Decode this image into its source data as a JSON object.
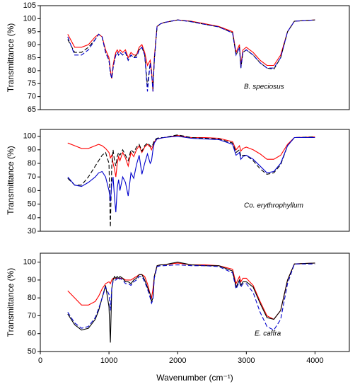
{
  "chart_data": [
    {
      "type": "line",
      "ylabel": "Transmittance (%)",
      "annotation": "B. speciosus",
      "x": [
        400,
        500,
        600,
        700,
        800,
        850,
        900,
        950,
        1000,
        1020,
        1040,
        1060,
        1080,
        1100,
        1120,
        1140,
        1160,
        1200,
        1240,
        1280,
        1320,
        1360,
        1400,
        1440,
        1480,
        1520,
        1560,
        1600,
        1620,
        1640,
        1660,
        1700,
        1750,
        1800,
        2000,
        2200,
        2400,
        2600,
        2800,
        2850,
        2900,
        2920,
        2950,
        3000,
        3100,
        3200,
        3300,
        3400,
        3500,
        3600,
        3700,
        4000
      ],
      "xlim": [
        0,
        4500
      ],
      "ylim": [
        65,
        105
      ],
      "yticks": [
        65,
        70,
        75,
        80,
        85,
        90,
        95,
        100,
        105
      ],
      "series": [
        {
          "color": "#ff0000",
          "style": "solid",
          "values": [
            94,
            89,
            89,
            90,
            93,
            94,
            93,
            88,
            85,
            80,
            77,
            82,
            85,
            87,
            88,
            87,
            88,
            87,
            88,
            85,
            87,
            86,
            86,
            89,
            90,
            87,
            82,
            84,
            80,
            72,
            85,
            97,
            98,
            98.5,
            99.5,
            99,
            98,
            97,
            95,
            87,
            90,
            82,
            88,
            89,
            87,
            84,
            82,
            82,
            86,
            95,
            99,
            99.5
          ]
        },
        {
          "color": "#000000",
          "style": "dashed",
          "values": [
            92,
            87,
            87,
            89,
            92,
            94,
            93,
            87,
            84,
            79,
            77,
            81,
            84,
            86,
            87,
            86,
            87,
            86,
            87,
            84,
            86,
            85,
            86,
            88,
            89,
            86,
            74,
            83,
            79,
            73,
            84,
            97,
            98,
            98.5,
            99.5,
            98.9,
            97.8,
            96.8,
            94.6,
            86,
            89,
            81,
            87,
            88,
            86,
            83,
            81,
            80.5,
            85,
            95,
            99,
            99.5
          ]
        },
        {
          "color": "#0000cc",
          "style": "dashed",
          "values": [
            93,
            86,
            86,
            88,
            92,
            94,
            93,
            87,
            84,
            79,
            77,
            81,
            84,
            86,
            87,
            86,
            87,
            86,
            87,
            84,
            86,
            85,
            85,
            88,
            89,
            86,
            72,
            83,
            79,
            72,
            84,
            97,
            98,
            98.5,
            99.5,
            98.8,
            97.8,
            96.8,
            94.5,
            86,
            89,
            81,
            87,
            88,
            86,
            83,
            81,
            81,
            85,
            95,
            99,
            99.5
          ]
        }
      ]
    },
    {
      "type": "line",
      "ylabel": "Transmittance (%)",
      "annotation": "Co. erythrophyllum",
      "x": [
        400,
        500,
        600,
        700,
        800,
        850,
        900,
        950,
        1000,
        1020,
        1040,
        1060,
        1080,
        1100,
        1120,
        1140,
        1160,
        1200,
        1240,
        1280,
        1320,
        1360,
        1400,
        1440,
        1480,
        1520,
        1560,
        1600,
        1620,
        1640,
        1660,
        1700,
        1750,
        1800,
        2000,
        2200,
        2400,
        2600,
        2800,
        2850,
        2900,
        2920,
        2950,
        3000,
        3100,
        3200,
        3300,
        3400,
        3500,
        3600,
        3700,
        4000
      ],
      "xlim": [
        0,
        4500
      ],
      "ylim": [
        30,
        105
      ],
      "yticks": [
        30,
        40,
        50,
        60,
        70,
        80,
        90,
        100
      ],
      "series": [
        {
          "color": "#ff0000",
          "style": "solid",
          "values": [
            95,
            93,
            91,
            91,
            93,
            94,
            93,
            91,
            88,
            84,
            86,
            80,
            76,
            70,
            80,
            85,
            82,
            88,
            84,
            78,
            88,
            85,
            90,
            93,
            88,
            92,
            94,
            92,
            90,
            93,
            96,
            98,
            98.5,
            99,
            100.5,
            99,
            99,
            98.5,
            96,
            90,
            93,
            89,
            91,
            92,
            90,
            87,
            83,
            83,
            86,
            94,
            99,
            99.5
          ]
        },
        {
          "color": "#000000",
          "style": "dashed",
          "values": [
            69,
            64,
            64,
            70,
            78,
            82,
            86,
            88,
            80,
            33,
            78,
            90,
            82,
            78,
            85,
            88,
            86,
            90,
            86,
            82,
            90,
            88,
            92,
            94,
            89,
            93,
            95,
            93,
            92,
            94,
            97,
            98.5,
            99,
            99,
            101,
            99,
            98.5,
            98,
            95,
            88,
            90,
            85,
            86,
            86,
            82,
            76,
            72,
            73,
            79,
            93,
            99,
            99.5
          ]
        },
        {
          "color": "#0000cc",
          "style": "solid",
          "values": [
            70,
            64,
            63,
            66,
            70,
            73,
            74,
            70,
            60,
            52,
            65,
            70,
            55,
            44,
            62,
            68,
            60,
            70,
            66,
            56,
            73,
            69,
            79,
            86,
            72,
            80,
            87,
            80,
            82,
            90,
            95,
            98,
            98.5,
            99,
            100,
            98.5,
            98,
            97.5,
            94,
            86,
            88,
            83,
            85,
            86,
            83,
            78,
            73,
            74,
            80,
            93,
            99,
            99
          ]
        }
      ]
    },
    {
      "type": "line",
      "ylabel": "Transmittance (%)",
      "annotation": "E. caffra",
      "xlabel": "Wavenumber (cm⁻¹)",
      "x": [
        400,
        500,
        600,
        700,
        800,
        850,
        900,
        950,
        1000,
        1020,
        1040,
        1060,
        1080,
        1100,
        1120,
        1140,
        1160,
        1200,
        1240,
        1280,
        1320,
        1360,
        1400,
        1440,
        1480,
        1520,
        1560,
        1600,
        1620,
        1640,
        1660,
        1700,
        1750,
        1800,
        2000,
        2200,
        2400,
        2600,
        2800,
        2850,
        2900,
        2920,
        2950,
        3000,
        3100,
        3200,
        3300,
        3400,
        3500,
        3600,
        3700,
        4000
      ],
      "xlim": [
        0,
        4500
      ],
      "xticks": [
        0,
        1000,
        2000,
        3000,
        4000
      ],
      "ylim": [
        50,
        105
      ],
      "yticks": [
        50,
        60,
        70,
        80,
        90,
        100
      ],
      "series": [
        {
          "color": "#ff0000",
          "style": "solid",
          "values": [
            84,
            80,
            76,
            76,
            78,
            81,
            85,
            88,
            89,
            88,
            90,
            91,
            91,
            91,
            91,
            91,
            91,
            91,
            90,
            90,
            90,
            91,
            92,
            93,
            93,
            92,
            88,
            82,
            80,
            85,
            92,
            98,
            98.5,
            98.5,
            99.5,
            98.5,
            98.5,
            98,
            96,
            88,
            92,
            89,
            91,
            91,
            87,
            78,
            70,
            68,
            73,
            90,
            99,
            99.5
          ]
        },
        {
          "color": "#000000",
          "style": "solid",
          "values": [
            71,
            65,
            62,
            63,
            68,
            73,
            80,
            87,
            75,
            55,
            85,
            90,
            92,
            91,
            92,
            91,
            92,
            91,
            89,
            89,
            88,
            90,
            91,
            93,
            93,
            90,
            86,
            82,
            78,
            80,
            92,
            98,
            98.5,
            98.5,
            100,
            98.5,
            98,
            98,
            95,
            86,
            90,
            87,
            89,
            89,
            86,
            77,
            69,
            68,
            73,
            90,
            99,
            99.5
          ]
        },
        {
          "color": "#0000cc",
          "style": "dashed",
          "values": [
            72,
            66,
            63,
            64,
            69,
            74,
            80,
            86,
            82,
            73,
            85,
            89,
            90,
            90,
            91,
            90,
            91,
            90,
            88,
            88,
            87,
            89,
            90,
            92,
            92,
            89,
            85,
            80,
            77,
            79,
            91,
            97.5,
            98,
            98,
            98.5,
            98,
            98,
            97.5,
            94,
            85,
            89,
            86,
            88,
            88,
            83,
            72,
            64,
            62,
            68,
            88,
            99,
            99
          ]
        }
      ]
    }
  ]
}
